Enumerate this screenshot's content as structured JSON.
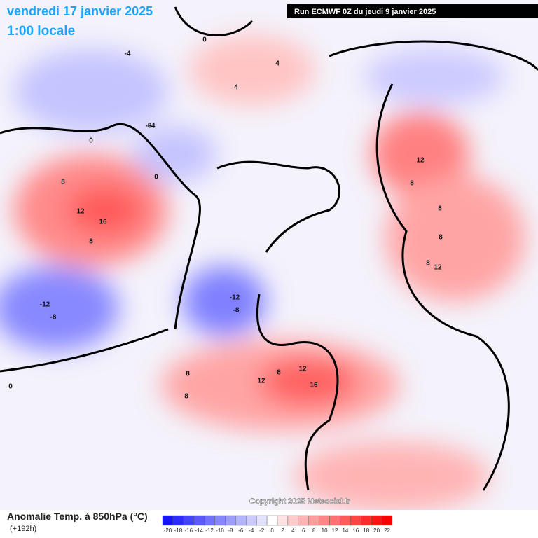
{
  "header": {
    "title": "vendredi 17 janvier 2025",
    "subtitle": "1:00 locale",
    "run": "Run ECMWF 0Z du jeudi 9 janvier 2025"
  },
  "footer": {
    "variable": "Anomalie Temp. à 850hPa (°C)",
    "lead": "(+192h)",
    "copyright": "Copyright 2025 Meteociel.fr"
  },
  "colorbar": {
    "labels": [
      -20,
      -18,
      -16,
      -14,
      -12,
      -10,
      -8,
      -6,
      -4,
      -2,
      0,
      2,
      4,
      6,
      8,
      10,
      12,
      14,
      16,
      18,
      20,
      22
    ],
    "colors": [
      "#1414ff",
      "#2c2cff",
      "#4444ff",
      "#5a5aff",
      "#7070ff",
      "#8686ff",
      "#9c9cff",
      "#b4b4ff",
      "#cacaff",
      "#e2e2ff",
      "#ffffff",
      "#ffe2e2",
      "#ffcaca",
      "#ffb4b4",
      "#ff9c9c",
      "#ff8686",
      "#ff7070",
      "#ff5a5a",
      "#ff4444",
      "#ff2c2c",
      "#ff1414",
      "#ff0000"
    ]
  },
  "map_labels": [
    "12",
    "16",
    "8",
    "8",
    "-12",
    "-8",
    "-12",
    "-8",
    "12",
    "16",
    "12",
    "8",
    "12",
    "8",
    "8",
    "8",
    "12",
    "8",
    "-4",
    "-4",
    "-8",
    "4",
    "4",
    "0",
    "0",
    "0",
    "0",
    "8",
    "8"
  ]
}
